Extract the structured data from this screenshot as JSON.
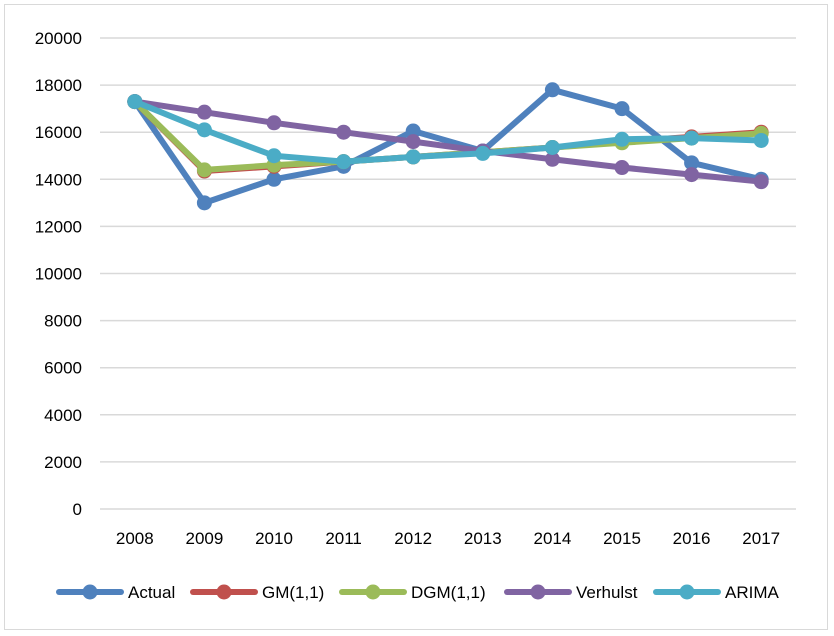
{
  "chart_data": {
    "type": "line",
    "x": [
      "2008",
      "2009",
      "2010",
      "2011",
      "2012",
      "2013",
      "2014",
      "2015",
      "2016",
      "2017"
    ],
    "ylim": [
      0,
      20000
    ],
    "yticks": [
      0,
      2000,
      4000,
      6000,
      8000,
      10000,
      12000,
      14000,
      16000,
      18000,
      20000
    ],
    "grid": true,
    "legend_position": "bottom",
    "series": [
      {
        "name": "Actual",
        "color": "#4f81bd",
        "values": [
          17300,
          13000,
          14000,
          14550,
          16050,
          15200,
          17800,
          17000,
          14700,
          14000
        ]
      },
      {
        "name": "GM(1,1)",
        "color": "#c0504d",
        "values": [
          17300,
          14350,
          14550,
          14750,
          14950,
          15150,
          15350,
          15600,
          15800,
          16000
        ]
      },
      {
        "name": "DGM(1,1)",
        "color": "#9bbb59",
        "values": [
          17300,
          14400,
          14600,
          14750,
          14950,
          15150,
          15350,
          15550,
          15750,
          15950
        ]
      },
      {
        "name": "Verhulst",
        "color": "#8064a2",
        "values": [
          17300,
          16850,
          16400,
          16000,
          15600,
          15200,
          14850,
          14500,
          14200,
          13900
        ]
      },
      {
        "name": "ARIMA",
        "color": "#4bacc6",
        "values": [
          17300,
          16100,
          15000,
          14750,
          14950,
          15100,
          15350,
          15700,
          15750,
          15650
        ]
      }
    ]
  }
}
